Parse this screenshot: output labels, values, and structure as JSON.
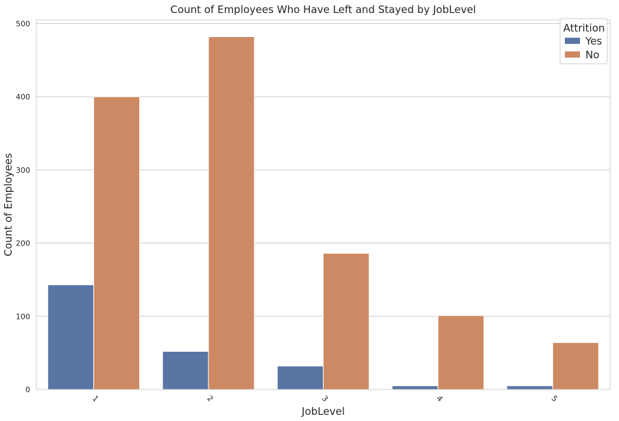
{
  "chart_data": {
    "type": "bar",
    "title": "Count of Employees Who Have Left and Stayed by JobLevel",
    "xlabel": "JobLevel",
    "ylabel": "Count of Employees",
    "categories": [
      "1",
      "2",
      "3",
      "4",
      "5"
    ],
    "series": [
      {
        "name": "Yes",
        "color": "#5975a4",
        "values": [
          143,
          52,
          32,
          5,
          5
        ]
      },
      {
        "name": "No",
        "color": "#cc8963",
        "values": [
          400,
          482,
          186,
          101,
          64
        ]
      }
    ],
    "yticks": [
      "0",
      "100",
      "200",
      "300",
      "400",
      "500"
    ],
    "ylim": [
      0,
      505
    ],
    "grid": true,
    "legend": {
      "title": "Attrition",
      "placement": "top-right"
    }
  }
}
